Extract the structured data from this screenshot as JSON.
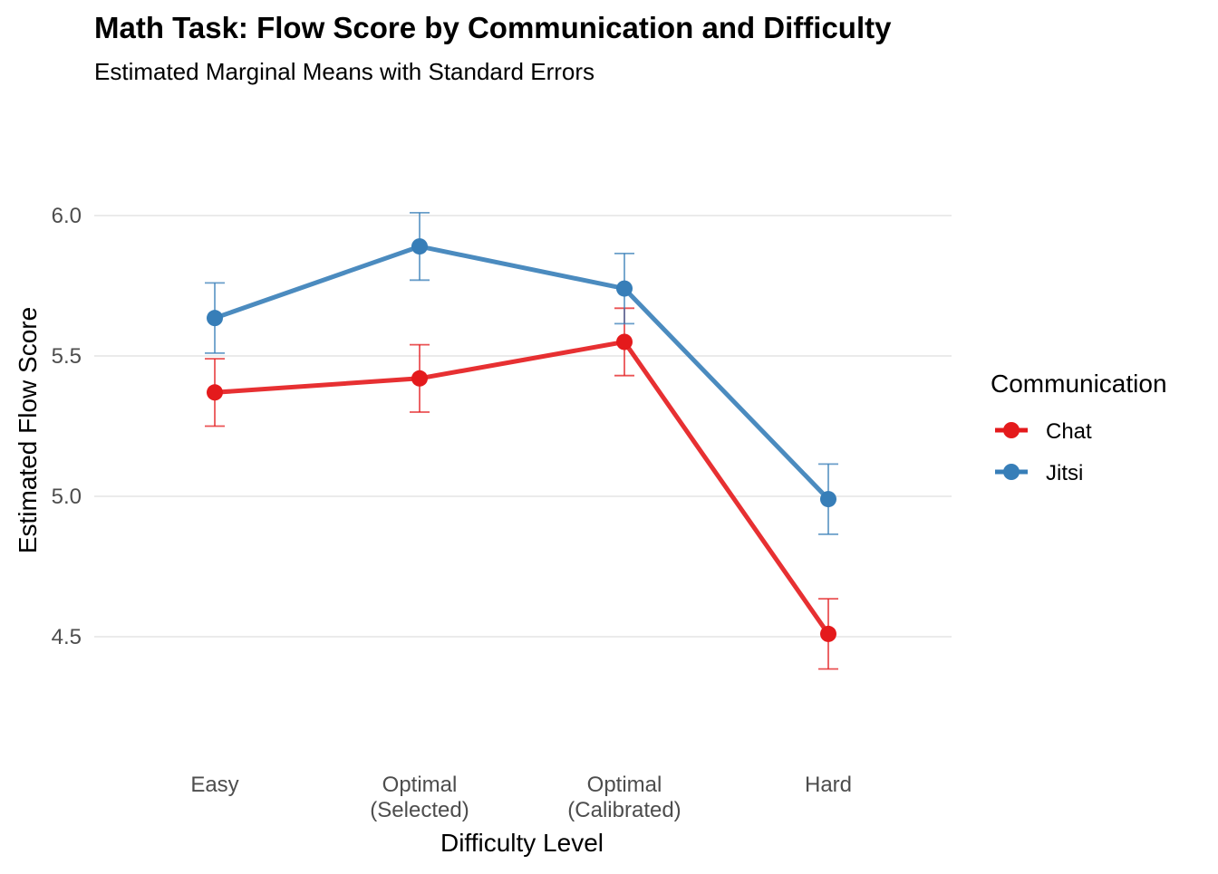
{
  "chart_data": {
    "type": "line",
    "title": "Math Task: Flow Score by Communication and Difficulty",
    "subtitle": "Estimated Marginal Means with Standard Errors",
    "xlabel": "Difficulty Level",
    "ylabel": "Estimated Flow Score",
    "categories": [
      [
        "Easy"
      ],
      [
        "Optimal",
        "(Selected)"
      ],
      [
        "Optimal",
        "(Calibrated)"
      ],
      [
        "Hard"
      ]
    ],
    "yticks": [
      "4.5",
      "5.0",
      "5.5",
      "6.0"
    ],
    "ylim": [
      4.18,
      6.23
    ],
    "grid": true,
    "legend": {
      "title": "Communication",
      "position": "right"
    },
    "series": [
      {
        "name": "Chat",
        "color": "#E41A1C",
        "values": [
          5.37,
          5.42,
          5.55,
          4.51
        ],
        "se": [
          0.12,
          0.12,
          0.12,
          0.125
        ]
      },
      {
        "name": "Jitsi",
        "color": "#377EB8",
        "values": [
          5.635,
          5.89,
          5.74,
          4.99
        ],
        "se": [
          0.125,
          0.12,
          0.125,
          0.125
        ]
      }
    ]
  }
}
